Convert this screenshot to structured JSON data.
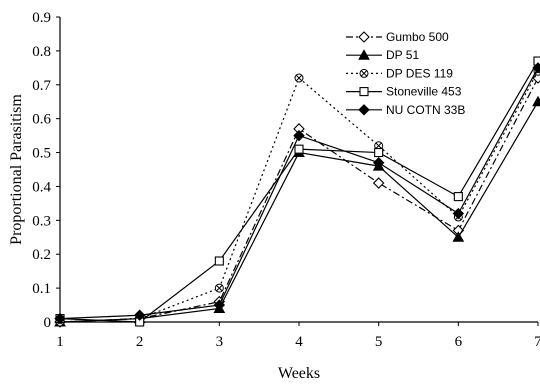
{
  "chart_data": {
    "type": "line",
    "xlabel": "Weeks",
    "ylabel": "Proportional Parasitism",
    "xlim": [
      1,
      7
    ],
    "ylim": [
      0,
      0.9
    ],
    "x": [
      1,
      2,
      3,
      4,
      5,
      6,
      7
    ],
    "x_ticks": [
      "1",
      "2",
      "3",
      "4",
      "5",
      "6",
      "7"
    ],
    "y_ticks": [
      "0",
      "0.1",
      "0.2",
      "0.3",
      "0.4",
      "0.5",
      "0.6",
      "0.7",
      "0.8",
      "0.9"
    ],
    "grid": false,
    "legend_position": "top-right",
    "series": [
      {
        "name": "Gumbo 500",
        "values": [
          0.0,
          0.01,
          0.06,
          0.57,
          0.41,
          0.27,
          0.72
        ],
        "dash": "dash-dot",
        "marker": "diamond-open",
        "color": "#000000"
      },
      {
        "name": "DP 51",
        "values": [
          0.0,
          0.01,
          0.04,
          0.5,
          0.46,
          0.25,
          0.65
        ],
        "dash": "solid",
        "marker": "triangle-filled",
        "color": "#000000"
      },
      {
        "name": "DP DES 119",
        "values": [
          0.0,
          0.01,
          0.1,
          0.72,
          0.52,
          0.31,
          0.74
        ],
        "dash": "dotted",
        "marker": "x-circle",
        "color": "#000000"
      },
      {
        "name": "Stoneville 453",
        "values": [
          0.01,
          0.0,
          0.18,
          0.51,
          0.5,
          0.37,
          0.77
        ],
        "dash": "solid",
        "marker": "square-open",
        "color": "#000000"
      },
      {
        "name": "NU COTN 33B",
        "values": [
          0.01,
          0.02,
          0.05,
          0.55,
          0.47,
          0.32,
          0.75
        ],
        "dash": "solid",
        "marker": "diamond-filled",
        "color": "#000000"
      }
    ]
  }
}
